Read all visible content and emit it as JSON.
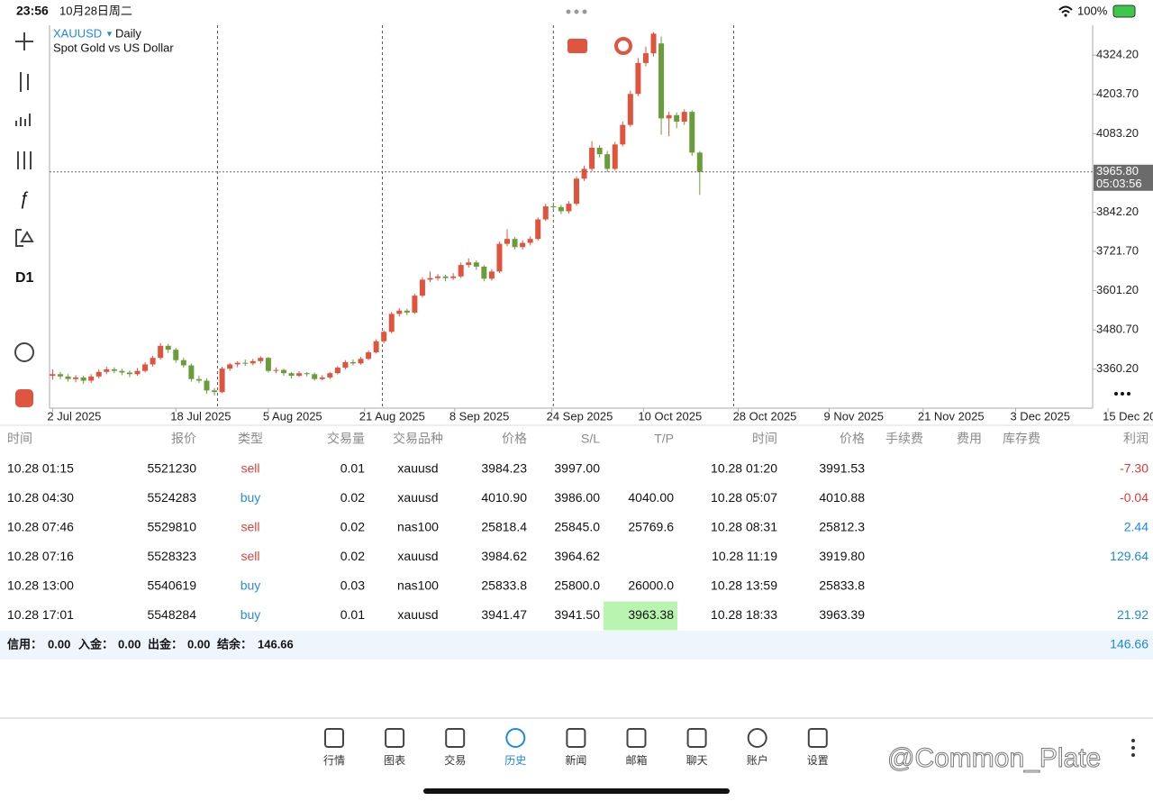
{
  "status_bar": {
    "time": "23:56",
    "date": "10月28日周二",
    "battery": "100%"
  },
  "toolbar": {
    "timeframe": "D1"
  },
  "chart_data": {
    "type": "candlestick",
    "symbol": "XAUUSD",
    "timeframe": "Daily",
    "description": "Spot Gold vs US Dollar",
    "up_color": "#e0533d",
    "down_color": "#6b9c3a",
    "candles": [
      [
        3340,
        3360,
        3328,
        3345
      ],
      [
        3345,
        3352,
        3330,
        3338
      ],
      [
        3338,
        3345,
        3322,
        3330
      ],
      [
        3330,
        3342,
        3320,
        3335
      ],
      [
        3335,
        3340,
        3315,
        3325
      ],
      [
        3325,
        3345,
        3318,
        3338
      ],
      [
        3338,
        3360,
        3332,
        3352
      ],
      [
        3352,
        3368,
        3345,
        3360
      ],
      [
        3360,
        3366,
        3348,
        3355
      ],
      [
        3355,
        3362,
        3342,
        3350
      ],
      [
        3350,
        3356,
        3336,
        3345
      ],
      [
        3345,
        3364,
        3340,
        3355
      ],
      [
        3355,
        3382,
        3350,
        3375
      ],
      [
        3375,
        3402,
        3368,
        3395
      ],
      [
        3395,
        3440,
        3390,
        3432
      ],
      [
        3432,
        3438,
        3410,
        3420
      ],
      [
        3420,
        3426,
        3380,
        3388
      ],
      [
        3388,
        3395,
        3365,
        3372
      ],
      [
        3372,
        3378,
        3322,
        3330
      ],
      [
        3330,
        3340,
        3318,
        3325
      ],
      [
        3325,
        3332,
        3285,
        3295
      ],
      [
        3295,
        3302,
        3280,
        3290
      ],
      [
        3290,
        3368,
        3286,
        3362
      ],
      [
        3362,
        3380,
        3355,
        3375
      ],
      [
        3375,
        3385,
        3366,
        3380
      ],
      [
        3380,
        3390,
        3370,
        3378
      ],
      [
        3378,
        3392,
        3372,
        3385
      ],
      [
        3385,
        3400,
        3378,
        3395
      ],
      [
        3395,
        3398,
        3350,
        3355
      ],
      [
        3355,
        3366,
        3348,
        3358
      ],
      [
        3358,
        3362,
        3340,
        3348
      ],
      [
        3348,
        3352,
        3332,
        3340
      ],
      [
        3340,
        3354,
        3336,
        3348
      ],
      [
        3348,
        3352,
        3338,
        3345
      ],
      [
        3345,
        3350,
        3325,
        3330
      ],
      [
        3330,
        3342,
        3326,
        3335
      ],
      [
        3335,
        3352,
        3330,
        3348
      ],
      [
        3348,
        3370,
        3344,
        3365
      ],
      [
        3365,
        3388,
        3360,
        3382
      ],
      [
        3382,
        3390,
        3372,
        3378
      ],
      [
        3378,
        3398,
        3374,
        3392
      ],
      [
        3392,
        3418,
        3388,
        3412
      ],
      [
        3412,
        3452,
        3408,
        3446
      ],
      [
        3446,
        3480,
        3440,
        3475
      ],
      [
        3475,
        3536,
        3470,
        3530
      ],
      [
        3530,
        3548,
        3522,
        3540
      ],
      [
        3540,
        3546,
        3526,
        3534
      ],
      [
        3534,
        3592,
        3530,
        3586
      ],
      [
        3586,
        3642,
        3580,
        3635
      ],
      [
        3635,
        3660,
        3628,
        3640
      ],
      [
        3640,
        3652,
        3632,
        3645
      ],
      [
        3645,
        3650,
        3630,
        3640
      ],
      [
        3640,
        3655,
        3634,
        3645
      ],
      [
        3645,
        3688,
        3640,
        3680
      ],
      [
        3680,
        3700,
        3672,
        3688
      ],
      [
        3688,
        3694,
        3665,
        3675
      ],
      [
        3675,
        3680,
        3630,
        3638
      ],
      [
        3638,
        3668,
        3632,
        3660
      ],
      [
        3660,
        3752,
        3655,
        3745
      ],
      [
        3745,
        3790,
        3738,
        3760
      ],
      [
        3760,
        3766,
        3728,
        3735
      ],
      [
        3735,
        3756,
        3728,
        3748
      ],
      [
        3748,
        3768,
        3740,
        3760
      ],
      [
        3760,
        3826,
        3755,
        3820
      ],
      [
        3820,
        3868,
        3815,
        3860
      ],
      [
        3860,
        3872,
        3850,
        3858
      ],
      [
        3858,
        3865,
        3836,
        3845
      ],
      [
        3845,
        3876,
        3838,
        3868
      ],
      [
        3868,
        3952,
        3862,
        3945
      ],
      [
        3945,
        3985,
        3938,
        3975
      ],
      [
        3975,
        4060,
        3968,
        4040
      ],
      [
        4040,
        4048,
        4010,
        4020
      ],
      [
        4020,
        4030,
        3965,
        3975
      ],
      [
        3975,
        4058,
        3970,
        4050
      ],
      [
        4050,
        4120,
        4044,
        4110
      ],
      [
        4110,
        4215,
        4104,
        4205
      ],
      [
        4205,
        4315,
        4198,
        4300
      ],
      [
        4300,
        4350,
        4290,
        4330
      ],
      [
        4330,
        4395,
        4320,
        4390
      ],
      [
        4360,
        4381,
        4080,
        4130
      ],
      [
        4130,
        4150,
        4075,
        4140
      ],
      [
        4140,
        4148,
        4100,
        4120
      ],
      [
        4120,
        4158,
        4110,
        4150
      ],
      [
        4150,
        4155,
        4015,
        4025
      ],
      [
        4025,
        4030,
        3895,
        3966
      ]
    ],
    "xlim": [
      -0.4,
      135
    ],
    "ylim": [
      3240.7,
      4415.9
    ],
    "yticks": [
      {
        "value": 3360.2,
        "label": "3360.20"
      },
      {
        "value": 3480.7,
        "label": "3480.70"
      },
      {
        "value": 3601.2,
        "label": "3601.20"
      },
      {
        "value": 3721.7,
        "label": "3721.70"
      },
      {
        "value": 3842.2,
        "label": "3842.20"
      },
      {
        "value": 4083.2,
        "label": "4083.20"
      },
      {
        "value": 4203.7,
        "label": "4203.70"
      },
      {
        "value": 4324.2,
        "label": "4324.20"
      }
    ],
    "xticks": [
      {
        "value": 0,
        "label": "2 Jul 2025"
      },
      {
        "value": 16,
        "label": "18 Jul 2025"
      },
      {
        "value": 28,
        "label": "5 Aug 2025"
      },
      {
        "value": 40.5,
        "label": "21 Aug 2025"
      },
      {
        "value": 52.2,
        "label": "8 Sep 2025"
      },
      {
        "value": 64.8,
        "label": "24 Sep 2025"
      },
      {
        "value": 76.7,
        "label": "10 Oct 2025"
      },
      {
        "value": 89,
        "label": "28 Oct 2025"
      },
      {
        "value": 100.8,
        "label": "9 Nov 2025"
      },
      {
        "value": 113,
        "label": "21 Nov 2025"
      },
      {
        "value": 125,
        "label": "3 Dec 2025"
      },
      {
        "value": 137,
        "label": "15 Dec 2025"
      }
    ],
    "period_separators": [
      21.4,
      42.8,
      65,
      88.4
    ],
    "current_price": {
      "value": 3965.8,
      "label": "3965.80"
    },
    "countdown": "05:03:56"
  },
  "history": {
    "columns": [
      "时间",
      "报价",
      "类型",
      "交易量",
      "交易品种",
      "价格",
      "S/L",
      "T/P",
      "时间",
      "价格",
      "手续费",
      "费用",
      "库存费",
      "利润"
    ],
    "rows": [
      [
        "10.28 01:15",
        "5521230",
        "sell",
        "0.01",
        "xauusd",
        "3984.23",
        "3997.00",
        null,
        "10.28 01:20",
        "3991.53",
        null,
        null,
        null,
        "-7.30"
      ],
      [
        "10.28 04:30",
        "5524283",
        "buy",
        "0.02",
        "xauusd",
        "4010.90",
        "3986.00",
        "4040.00",
        "10.28 05:07",
        "4010.88",
        null,
        null,
        null,
        "-0.04"
      ],
      [
        "10.28 07:46",
        "5529810",
        "sell",
        "0.02",
        "nas100",
        "25818.4",
        "25845.0",
        "25769.6",
        "10.28 08:31",
        "25812.3",
        null,
        null,
        null,
        "2.44"
      ],
      [
        "10.28 07:16",
        "5528323",
        "sell",
        "0.02",
        "xauusd",
        "3984.62",
        "3964.62",
        null,
        "10.28 11:19",
        "3919.80",
        null,
        null,
        null,
        "129.64"
      ],
      [
        "10.28 13:00",
        "5540619",
        "buy",
        "0.03",
        "nas100",
        "25833.8",
        "25800.0",
        "26000.0",
        "10.28 13:59",
        "25833.8",
        null,
        null,
        null,
        null
      ],
      [
        "10.28 17:01",
        "5548284",
        "buy",
        "0.01",
        "xauusd",
        "3941.47",
        "3941.50",
        "3963.38",
        "10.28 18:33",
        "3963.39",
        null,
        null,
        null,
        "21.92"
      ]
    ],
    "highlight_cell": {
      "row": 5,
      "col": 7
    },
    "summary": [
      {
        "label": "信用：",
        "value": "0.00"
      },
      {
        "label": "入金：",
        "value": "0.00"
      },
      {
        "label": "出金：",
        "value": "0.00"
      },
      {
        "label": "结余：",
        "value": "146.66"
      }
    ],
    "total": "146.66"
  },
  "nav": {
    "tabs": [
      "行情",
      "图表",
      "交易",
      "历史",
      "新闻",
      "邮箱",
      "聊天",
      "账户",
      "设置"
    ],
    "active": 3
  },
  "watermark": "@Common_Plate"
}
